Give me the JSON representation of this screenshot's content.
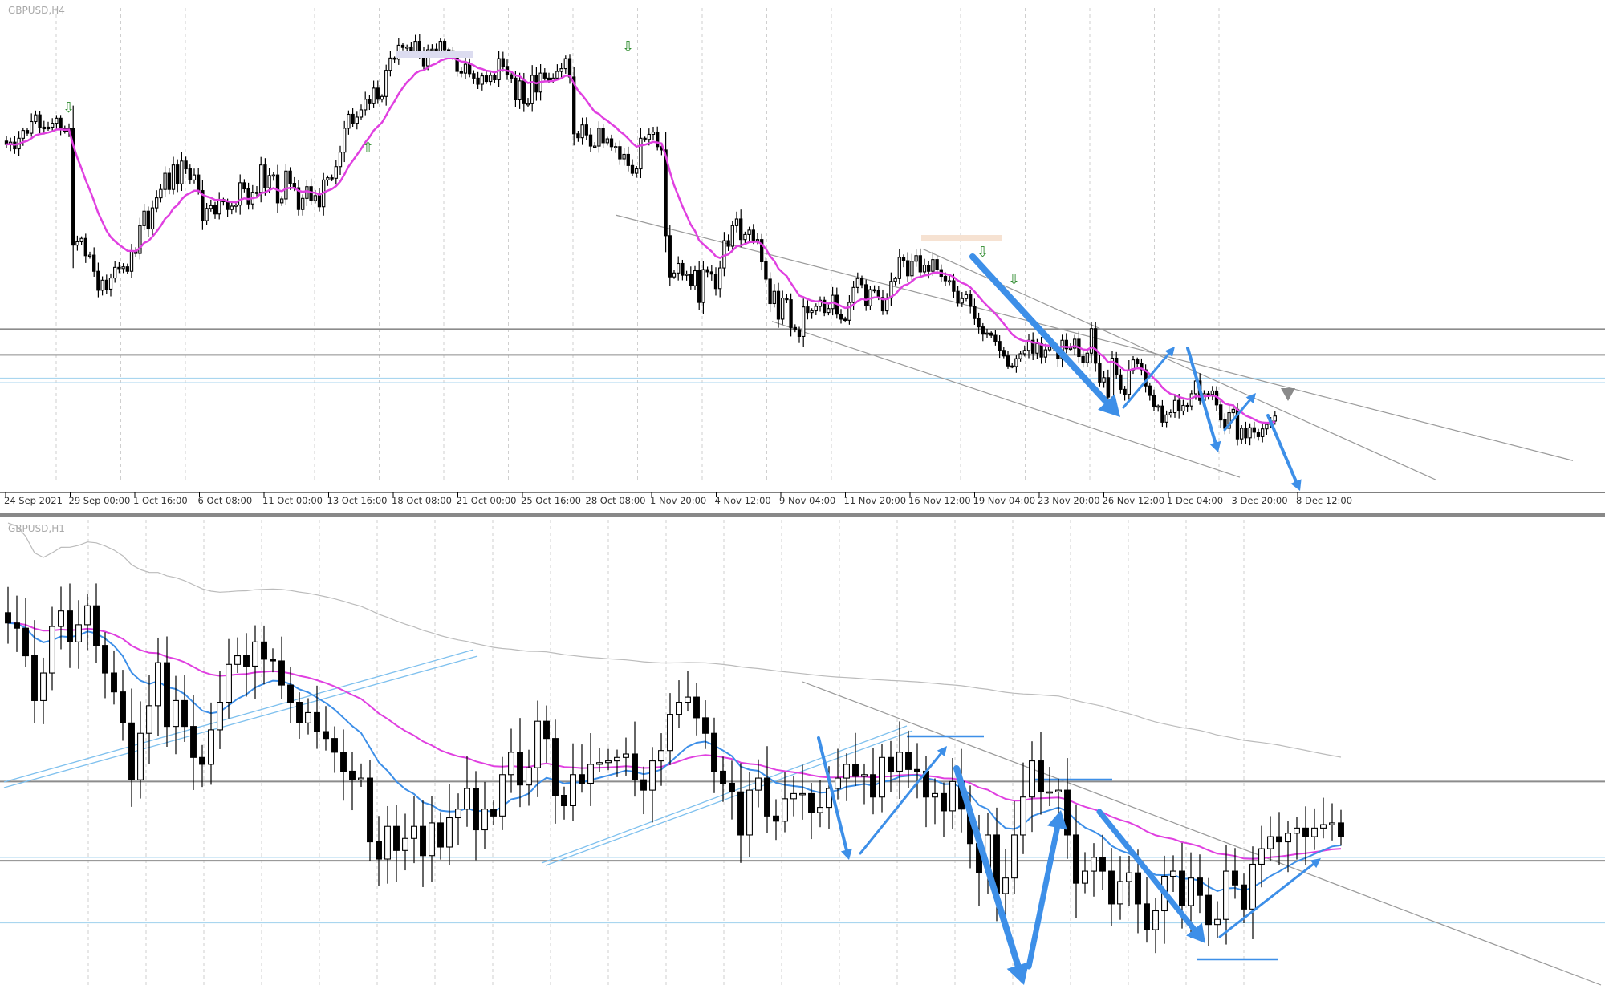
{
  "chart_data": [
    {
      "type": "candlestick",
      "title": "GBPUSD,H4",
      "x_tick_labels": [
        "24 Sep 2021",
        "29 Sep 00:00",
        "1 Oct 16:00",
        "6 Oct 08:00",
        "11 Oct 00:00",
        "13 Oct 16:00",
        "18 Oct 08:00",
        "21 Oct 00:00",
        "25 Oct 16:00",
        "28 Oct 08:00",
        "1 Nov 20:00",
        "4 Nov 12:00",
        "9 Nov 04:00",
        "11 Nov 20:00",
        "16 Nov 12:00",
        "19 Nov 04:00",
        "23 Nov 20:00",
        "26 Nov 12:00",
        "1 Dec 04:00",
        "3 Dec 20:00",
        "8 Dec 12:00"
      ],
      "ylim": [
        1.309,
        1.394
      ],
      "close": [
        1.3698,
        1.3702,
        1.369,
        1.3709,
        1.3723,
        1.3718,
        1.3739,
        1.3751,
        1.3729,
        1.3726,
        1.3729,
        1.3736,
        1.3745,
        1.3727,
        1.3721,
        1.3726,
        1.3517,
        1.3523,
        1.3529,
        1.3498,
        1.3499,
        1.347,
        1.3436,
        1.3454,
        1.3438,
        1.3458,
        1.3477,
        1.3475,
        1.3478,
        1.347,
        1.3506,
        1.3502,
        1.3552,
        1.3578,
        1.3546,
        1.3584,
        1.3602,
        1.3617,
        1.3646,
        1.3617,
        1.3661,
        1.3627,
        1.3668,
        1.3654,
        1.3634,
        1.3643,
        1.3615,
        1.3561,
        1.3583,
        1.3588,
        1.3573,
        1.3599,
        1.3595,
        1.3581,
        1.3587,
        1.3589,
        1.3629,
        1.3618,
        1.3591,
        1.3612,
        1.3612,
        1.3661,
        1.362,
        1.3642,
        1.3643,
        1.3593,
        1.36,
        1.365,
        1.3628,
        1.362,
        1.3581,
        1.3601,
        1.3622,
        1.3597,
        1.3606,
        1.3586,
        1.3634,
        1.3638,
        1.3637,
        1.3658,
        1.3684,
        1.3727,
        1.3752,
        1.3736,
        1.3747,
        1.376,
        1.3779,
        1.3771,
        1.3799,
        1.3779,
        1.3784,
        1.3831,
        1.3853,
        1.3851,
        1.3876,
        1.3872,
        1.3873,
        1.3862,
        1.3883,
        1.3859,
        1.3839,
        1.3868,
        1.3869,
        1.386,
        1.3883,
        1.3868,
        1.3866,
        1.3855,
        1.3829,
        1.3826,
        1.3842,
        1.3825,
        1.3817,
        1.3806,
        1.3821,
        1.3811,
        1.3822,
        1.3814,
        1.3852,
        1.3838,
        1.3823,
        1.3817,
        1.3778,
        1.3812,
        1.3771,
        1.3771,
        1.3822,
        1.3792,
        1.3826,
        1.3817,
        1.3812,
        1.3817,
        1.3829,
        1.3834,
        1.3852,
        1.3819,
        1.3717,
        1.371,
        1.3733,
        1.3715,
        1.3695,
        1.3695,
        1.3727,
        1.3701,
        1.3708,
        1.3694,
        1.3694,
        1.3672,
        1.368,
        1.366,
        1.3646,
        1.3654,
        1.3709,
        1.3707,
        1.3716,
        1.372,
        1.3694,
        1.3688,
        1.3534,
        1.346,
        1.3467,
        1.3484,
        1.3463,
        1.3465,
        1.3444,
        1.3471,
        1.3414,
        1.3473,
        1.3469,
        1.3465,
        1.3439,
        1.3476,
        1.3525,
        1.3515,
        1.3552,
        1.3564,
        1.3527,
        1.3536,
        1.3544,
        1.3526,
        1.3527,
        1.3487,
        1.3456,
        1.3412,
        1.3434,
        1.3384,
        1.3422,
        1.3419,
        1.3369,
        1.3365,
        1.3353,
        1.3406,
        1.3396,
        1.3399,
        1.3407,
        1.3418,
        1.3396,
        1.3403,
        1.3427,
        1.3393,
        1.3384,
        1.3382,
        1.3414,
        1.3441,
        1.3457,
        1.3446,
        1.3408,
        1.3437,
        1.3435,
        1.3423,
        1.3399,
        1.3422,
        1.3452,
        1.3457,
        1.3495,
        1.3489,
        1.3462,
        1.3488,
        1.3498,
        1.3469,
        1.3481,
        1.347,
        1.3491,
        1.3473,
        1.3461,
        1.3453,
        1.3453,
        1.3434,
        1.3413,
        1.3421,
        1.3428,
        1.3407,
        1.3385,
        1.337,
        1.3357,
        1.3359,
        1.3355,
        1.3344,
        1.3328,
        1.3318,
        1.33,
        1.3299,
        1.3313,
        1.3322,
        1.3328,
        1.3346,
        1.3323,
        1.334,
        1.3316,
        1.3329,
        1.3334,
        1.3333,
        1.3313,
        1.3346,
        1.3331,
        1.3332,
        1.3348,
        1.3317,
        1.3306,
        1.3323,
        1.3367,
        1.3305,
        1.3271,
        1.3279,
        1.3244,
        1.3314,
        1.3284,
        1.3258,
        1.3249,
        1.3293,
        1.3311,
        1.3304,
        1.3293,
        1.3264,
        1.3247,
        1.3227,
        1.3228,
        1.3199,
        1.3212,
        1.3216,
        1.3238,
        1.3219,
        1.3229,
        1.3228,
        1.325,
        1.3273,
        1.3238,
        1.325,
        1.3249,
        1.3255,
        1.323,
        1.3203,
        1.3188,
        1.3216,
        1.3222,
        1.3169,
        1.3188,
        1.3171,
        1.3189,
        1.3181,
        1.3173,
        1.3187,
        1.3195,
        1.3201,
        1.321
      ],
      "moving_average_color": "#e040e0",
      "horizontal_levels": [
        1.3366,
        1.332,
        1.327,
        1.3278
      ],
      "trend_lines": [
        {
          "from": [
            "9 Nov 04:00",
            1.3571
          ],
          "to": [
            "last bar",
            1.314
          ]
        },
        {
          "from": [
            "9 Nov 04:00",
            1.338
          ],
          "to": [
            "8 Dec 12:00",
            1.315
          ]
        }
      ],
      "arrow_color": "#3d8fe8"
    },
    {
      "type": "candlestick",
      "title": "GBPUSD,H1",
      "close": [
        1.3356,
        1.3353,
        1.3337,
        1.3311,
        1.3327,
        1.3354,
        1.3363,
        1.3345,
        1.3355,
        1.3366,
        1.3343,
        1.3327,
        1.3316,
        1.3298,
        1.3265,
        1.3292,
        1.3308,
        1.3333,
        1.3296,
        1.3311,
        1.3296,
        1.3278,
        1.3274,
        1.3294,
        1.331,
        1.3332,
        1.3337,
        1.3331,
        1.3345,
        1.3335,
        1.3334,
        1.332,
        1.331,
        1.3298,
        1.3304,
        1.3293,
        1.3289,
        1.3281,
        1.327,
        1.3265,
        1.3266,
        1.3229,
        1.3219,
        1.3238,
        1.3224,
        1.3231,
        1.3238,
        1.3221,
        1.324,
        1.3226,
        1.3243,
        1.3248,
        1.326,
        1.3236,
        1.3248,
        1.3244,
        1.3268,
        1.3281,
        1.3262,
        1.3272,
        1.3299,
        1.3289,
        1.3256,
        1.325,
        1.3268,
        1.3263,
        1.3274,
        1.3275,
        1.3276,
        1.3278,
        1.328,
        1.3265,
        1.3259,
        1.3276,
        1.3282,
        1.3303,
        1.331,
        1.3313,
        1.3301,
        1.3292,
        1.327,
        1.3263,
        1.3258,
        1.3233,
        1.3259,
        1.3266,
        1.3244,
        1.3241,
        1.3254,
        1.3257,
        1.3257,
        1.3246,
        1.3249,
        1.326,
        1.3266,
        1.3274,
        1.3267,
        1.3268,
        1.3255,
        1.3278,
        1.327,
        1.3281,
        1.3271,
        1.327,
        1.3255,
        1.3257,
        1.3247,
        1.3264,
        1.3248,
        1.3228,
        1.3211,
        1.3233,
        1.3199,
        1.3208,
        1.3233,
        1.3255,
        1.3276,
        1.3258,
        1.3258,
        1.3259,
        1.3233,
        1.3205,
        1.3212,
        1.322,
        1.3212,
        1.3193,
        1.3206,
        1.3211,
        1.3193,
        1.3178,
        1.3189,
        1.3209,
        1.3212,
        1.3192,
        1.3208,
        1.3198,
        1.3181,
        1.3184,
        1.3212,
        1.3204,
        1.319,
        1.3216,
        1.3225,
        1.3232,
        1.3229,
        1.3234,
        1.3237,
        1.3232,
        1.3237,
        1.3239,
        1.324,
        1.3232
      ],
      "horizontal_levels": [
        1.3264,
        1.3218,
        1.322,
        1.3182
      ],
      "moving_average_colors": [
        "#e040e0",
        "#3d8fe8",
        "#bbbbbb"
      ],
      "arrow_color": "#3d8fe8"
    }
  ]
}
